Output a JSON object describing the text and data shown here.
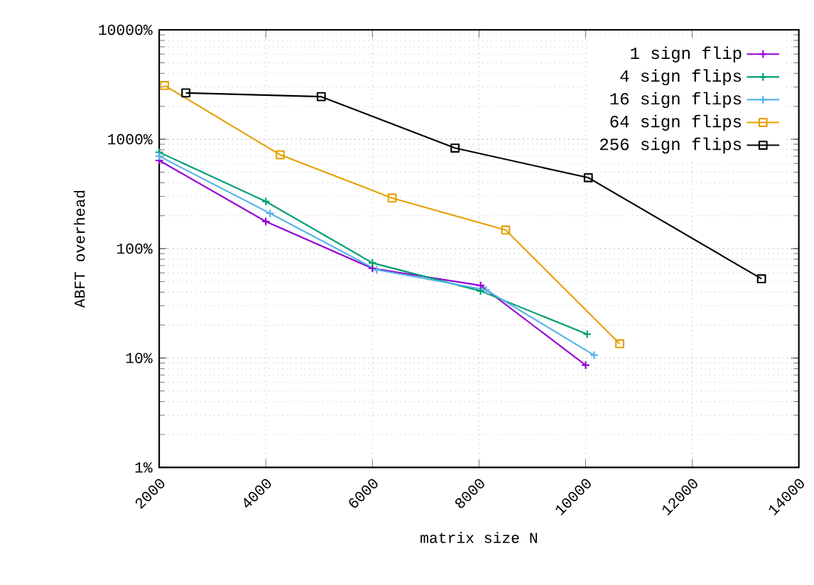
{
  "chart_data": {
    "type": "line",
    "xlabel": "matrix size N",
    "ylabel": "ABFT overhead",
    "log": "y",
    "grid": true,
    "legend": "top right",
    "line_style": "solid",
    "xlim": [
      2000,
      14000
    ],
    "xticks": [
      2000,
      4000,
      6000,
      8000,
      10000,
      12000,
      14000
    ],
    "ylim": [
      1,
      10000
    ],
    "yticks": [
      {
        "value": 1,
        "label": "1%"
      },
      {
        "value": 10,
        "label": "10%"
      },
      {
        "value": 100,
        "label": "100%"
      },
      {
        "value": 1000,
        "label": "1000%"
      },
      {
        "value": 10000,
        "label": "10000%"
      }
    ],
    "series": [
      {
        "name": "1 sign flip",
        "color": "#9400d3",
        "marker": "cross",
        "x": [
          2000,
          4000,
          6000,
          8030,
          10000
        ],
        "values": [
          640,
          177,
          66,
          46,
          8.6
        ]
      },
      {
        "name": "4 sign flips",
        "color": "#009e73",
        "marker": "cross",
        "x": [
          2000,
          4000,
          6000,
          8030,
          10030
        ],
        "values": [
          760,
          270,
          74,
          41,
          16.5
        ]
      },
      {
        "name": "16 sign flips",
        "color": "#56b4e9",
        "marker": "cross",
        "x": [
          2000,
          4080,
          6080,
          8130,
          10160
        ],
        "values": [
          700,
          210,
          64,
          42,
          10.6
        ]
      },
      {
        "name": "64 sign flips",
        "color": "#e69f00",
        "marker": "square",
        "x": [
          2100,
          4270,
          6370,
          8500,
          10640
        ],
        "values": [
          3100,
          720,
          290,
          148,
          13.5
        ]
      },
      {
        "name": "256 sign flips",
        "color": "#000000",
        "marker": "square",
        "x": [
          2500,
          5040,
          7550,
          10050,
          13300
        ],
        "values": [
          2650,
          2450,
          830,
          445,
          53
        ]
      }
    ]
  }
}
